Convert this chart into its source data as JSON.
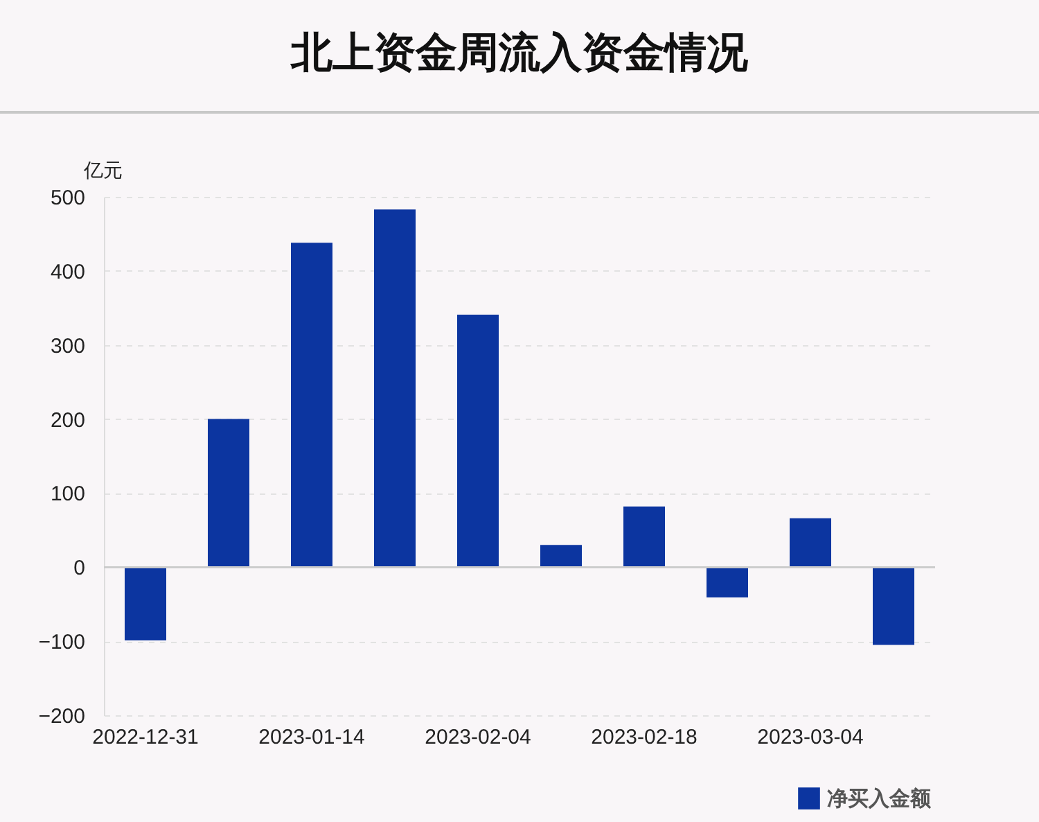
{
  "chart_data": {
    "type": "bar",
    "title": "北上资金周流入资金情况",
    "ylabel": "亿元",
    "categories": [
      "2022-12-31",
      null,
      "2023-01-14",
      null,
      "2023-02-04",
      null,
      "2023-02-18",
      null,
      "2023-03-04",
      null
    ],
    "series": [
      {
        "name": "净买入金额",
        "color": "#0c35a0",
        "values": [
          -99,
          200,
          438,
          483,
          341,
          30,
          82,
          -41,
          66,
          -105
        ]
      }
    ],
    "ylim": [
      -200,
      500
    ],
    "yticks": [
      -200,
      -100,
      0,
      100,
      200,
      300,
      400,
      500
    ],
    "grid": "y",
    "legend": "bottom right"
  }
}
